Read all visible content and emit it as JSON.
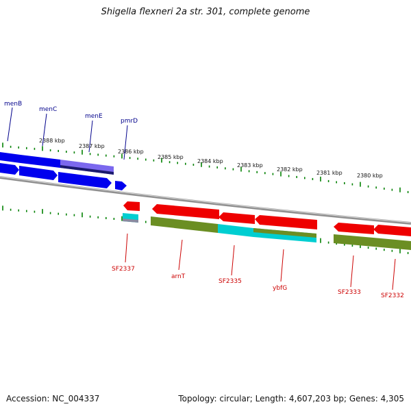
{
  "title": "Shigella flexneri 2a str. 301, complete genome",
  "footer": {
    "accession": "Accession: NC_004337",
    "info": "Topology: circular; Length: 4,607,203 bp; Genes: 4,305"
  },
  "colors": {
    "forward_cds": "#0000ee",
    "forward_gene_alt": "#7b68ee",
    "reverse_cds": "#ee0000",
    "reverse_gene": "#6b8e23",
    "reverse_gene_alt": "#00ced1",
    "backbone": "#8c8c8c",
    "tick": "#008000",
    "top_label": "#00008b",
    "bottom_label": "#cc0000"
  },
  "ruler": {
    "labels": [
      "2388 kbp",
      "2387 kbp",
      "2386 kbp",
      "2385 kbp",
      "2384 kbp",
      "2383 kbp",
      "2382 kbp",
      "2381 kbp",
      "2380 kbp"
    ]
  },
  "forward_genes": [
    "menB",
    "menC",
    "menE",
    "pmrD"
  ],
  "reverse_genes": [
    "SF2337",
    "arnT",
    "SF2335",
    "ybfG",
    "SF2333",
    "SF2332"
  ]
}
